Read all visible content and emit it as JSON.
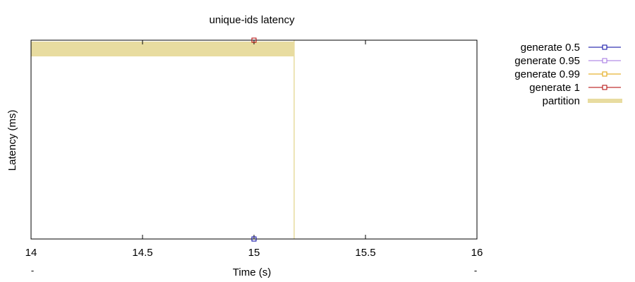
{
  "chart_data": {
    "type": "line",
    "title": "unique-ids latency",
    "xlabel": "Time (s)",
    "ylabel": "Latency (ms)",
    "xlim": [
      14,
      16
    ],
    "x_ticks": [
      14,
      14.5,
      15,
      15.5,
      16
    ],
    "x_tick_labels": [
      "14",
      "14.5",
      "15",
      "15.5",
      "16"
    ],
    "x2_tick_labels": [
      "-",
      "-"
    ],
    "ylim": [
      0,
      1
    ],
    "grid": false,
    "legend_position": "outside-right",
    "series": [
      {
        "name": "generate 0.5",
        "color": "#0000a0",
        "marker": "square-open",
        "points": [
          [
            15.0,
            0.0
          ]
        ]
      },
      {
        "name": "generate 0.95",
        "color": "#a070e0",
        "marker": "square-open",
        "points": []
      },
      {
        "name": "generate 0.99",
        "color": "#e0a000",
        "marker": "square-open",
        "points": []
      },
      {
        "name": "generate 1",
        "color": "#b00000",
        "marker": "square-open",
        "points": [
          [
            15.0,
            1.0
          ]
        ]
      }
    ],
    "regions": [
      {
        "name": "partition",
        "color": "#e8dca0",
        "x_start": 14.0,
        "x_end": 15.18
      }
    ]
  }
}
